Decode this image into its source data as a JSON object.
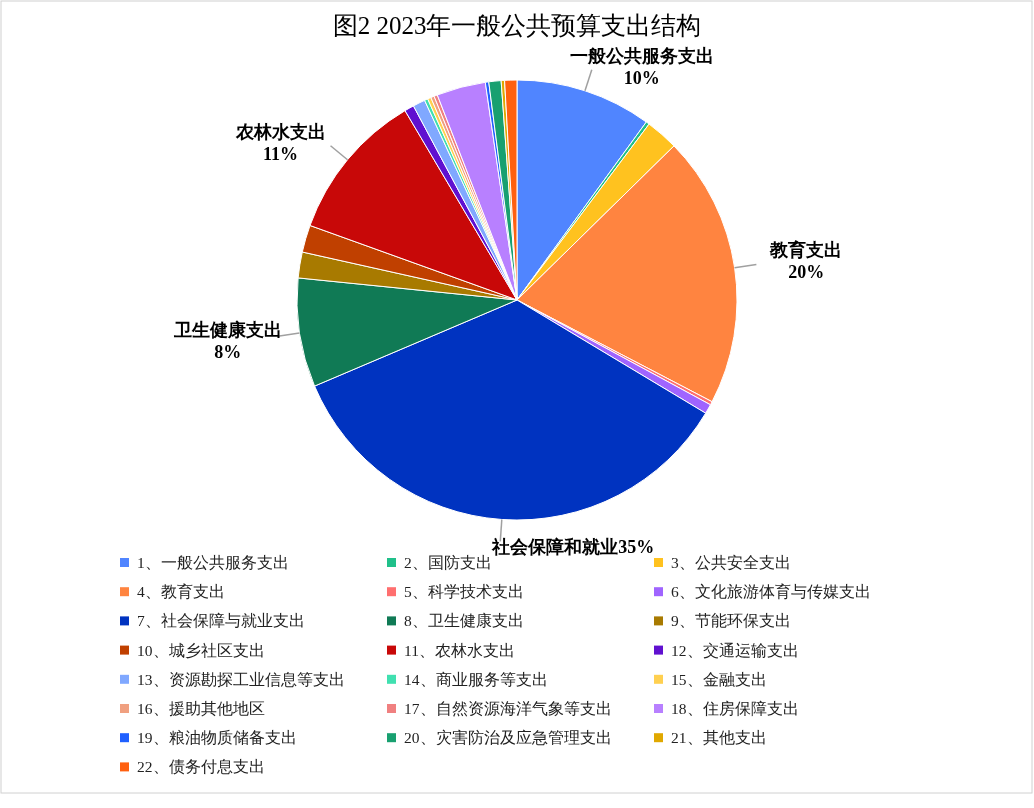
{
  "chart_data": {
    "type": "pie",
    "title": "图2  2023年一般公共预算支出结构",
    "categories": [
      "1、一般公共服务支出",
      "2、国防支出",
      "3、公共安全支出",
      "4、教育支出",
      "5、科学技术支出",
      "6、文化旅游体育与传媒支出",
      "7、社会保障与就业支出",
      "8、卫生健康支出",
      "9、节能环保支出",
      "10、城乡社区支出",
      "11、农林水支出",
      "12、交通运输支出",
      "13、资源勘探工业信息等支出",
      "14、商业服务等支出",
      "15、金融支出",
      "16、援助其他地区",
      "17、自然资源海洋气象等支出",
      "18、住房保障支出",
      "19、粮油物质储备支出",
      "20、灾害防治及应急管理支出",
      "21、其他支出",
      "22、债务付息支出"
    ],
    "values": [
      10,
      0.25,
      2.4,
      20,
      0.25,
      0.7,
      35,
      8,
      1.9,
      2.0,
      11,
      0.7,
      0.9,
      0.25,
      0.25,
      0.25,
      0.25,
      3.6,
      0.25,
      0.9,
      0.25,
      0.9
    ],
    "colors": [
      "#5085ff",
      "#20c08a",
      "#ffc21f",
      "#ff8440",
      "#ff6f6f",
      "#a064ff",
      "#0033c0",
      "#107a55",
      "#a87a00",
      "#c04000",
      "#c80808",
      "#6010d0",
      "#80a8ff",
      "#40e0b0",
      "#ffd050",
      "#f0a080",
      "#f08080",
      "#b880ff",
      "#2060ff",
      "#18a070",
      "#e0a800",
      "#ff6010"
    ],
    "value_labels": [
      "一般公共服务支出\n10%",
      null,
      null,
      "教育支出\n20%",
      null,
      null,
      "社会保障和就业35%",
      "卫生健康支出\n8%",
      null,
      null,
      "农林水支出\n11%",
      null,
      null,
      null,
      null,
      null,
      null,
      null,
      null,
      null,
      null,
      null
    ],
    "legend": "bottom"
  }
}
